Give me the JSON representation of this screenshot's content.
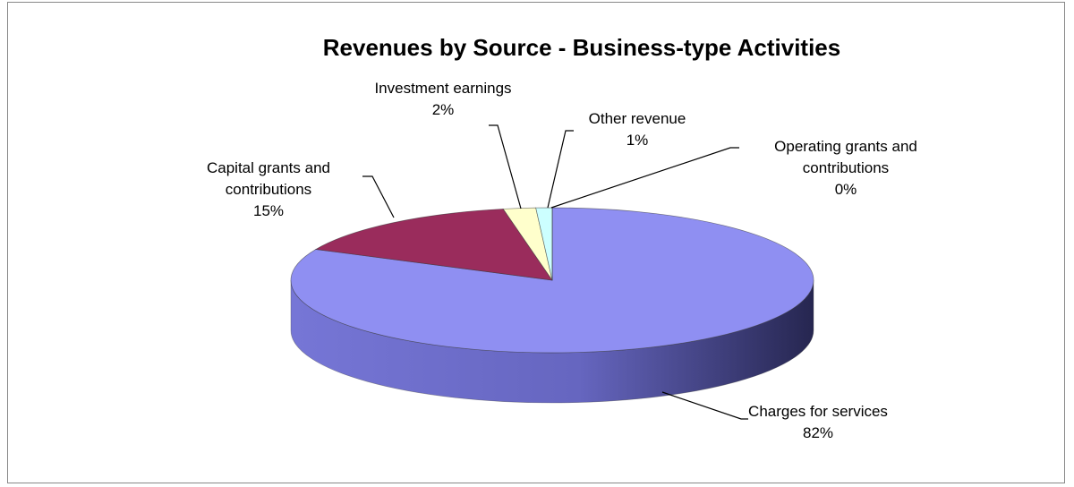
{
  "chart_data": {
    "type": "pie",
    "title": "Revenues by Source - Business-type Activities",
    "categories": [
      "Charges for services",
      "Capital grants and contributions",
      "Investment earnings",
      "Other revenue",
      "Operating grants and contributions"
    ],
    "values": [
      82,
      15,
      2,
      1,
      0
    ],
    "value_labels": [
      "82%",
      "15%",
      "2%",
      "1%",
      "0%"
    ],
    "colors": [
      "#8f8ff2",
      "#9a2c5c",
      "#ffffcc",
      "#ccffff",
      "#6666cc"
    ]
  }
}
